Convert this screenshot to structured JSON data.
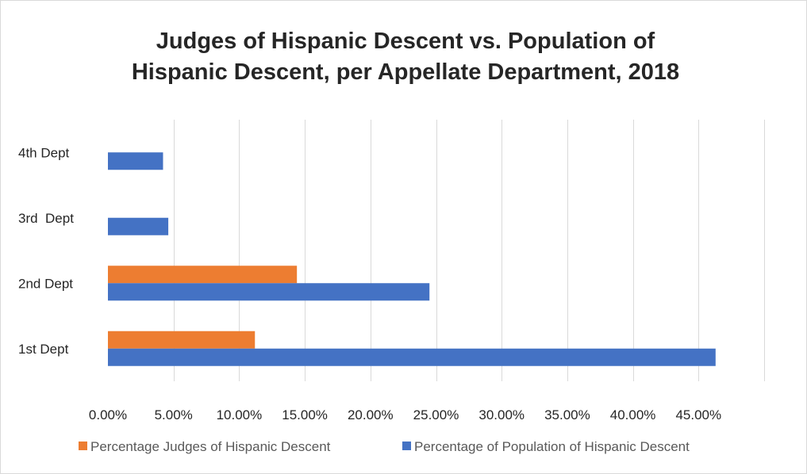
{
  "chart_data": {
    "type": "bar",
    "orientation": "horizontal",
    "title": "Judges of Hispanic Descent vs. Population of Hispanic Descent, per Appellate Department, 2018",
    "title_lines": [
      "Judges of Hispanic Descent vs. Population of",
      "Hispanic Descent, per Appellate Department, 2018"
    ],
    "categories": [
      "1st Dept",
      "2nd Dept",
      "3rd  Dept",
      "4th Dept"
    ],
    "series": [
      {
        "name": "Percentage Judges of Hispanic Descent",
        "color": "#ED7D31",
        "values": [
          0.112,
          0.144,
          0,
          0
        ]
      },
      {
        "name": "Percentage of Population of Hispanic Descent",
        "color": "#4472C4",
        "values": [
          0.463,
          0.245,
          0.046,
          0.042
        ]
      }
    ],
    "x_ticks": [
      "0.00%",
      "5.00%",
      "10.00%",
      "15.00%",
      "20.00%",
      "25.00%",
      "30.00%",
      "35.00%",
      "40.00%",
      "45.00%"
    ],
    "xlim": [
      0,
      0.5
    ],
    "grid": true,
    "legend_position": "bottom"
  }
}
